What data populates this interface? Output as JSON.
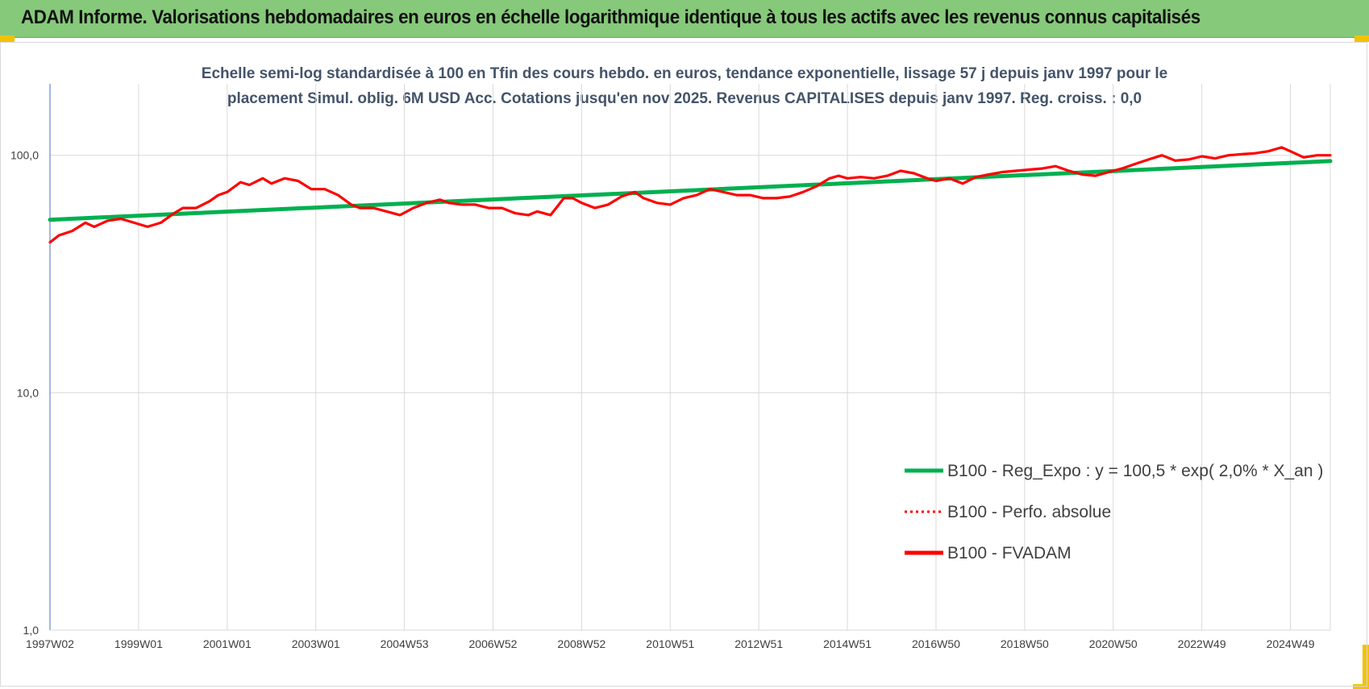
{
  "header": {
    "title": "ADAM Informe. Valorisations hebdomadaires en euros en échelle logarithmique identique à tous les actifs avec les revenus connus capitalisés"
  },
  "chart_data": {
    "type": "line",
    "subtitle_lines": [
      "Echelle semi-log standardisée à 100 en Tfin des cours hebdo. en euros, tendance exponentielle, lissage 57 j depuis janv 1997 pour le",
      "placement Simul. oblig. 6M USD Acc. Cotations jusqu'en nov 2025. Revenus CAPITALISES depuis janv 1997. Reg. croiss. : 0,0"
    ],
    "y_scale": "log",
    "ylim": [
      1,
      200
    ],
    "y_ticks": [
      {
        "value": 1,
        "label": "1,0"
      },
      {
        "value": 10,
        "label": "10,0"
      },
      {
        "value": 100,
        "label": "100,0"
      }
    ],
    "xlim": [
      1997.0,
      2025.9
    ],
    "x_ticks": [
      {
        "x": 1997.0,
        "label": "1997W02"
      },
      {
        "x": 1999.0,
        "label": "1999W01"
      },
      {
        "x": 2001.0,
        "label": "2001W01"
      },
      {
        "x": 2003.0,
        "label": "2003W01"
      },
      {
        "x": 2005.0,
        "label": "2004W53"
      },
      {
        "x": 2007.0,
        "label": "2006W52"
      },
      {
        "x": 2009.0,
        "label": "2008W52"
      },
      {
        "x": 2011.0,
        "label": "2010W51"
      },
      {
        "x": 2013.0,
        "label": "2012W51"
      },
      {
        "x": 2015.0,
        "label": "2014W51"
      },
      {
        "x": 2017.0,
        "label": "2016W50"
      },
      {
        "x": 2019.0,
        "label": "2018W50"
      },
      {
        "x": 2021.0,
        "label": "2020W50"
      },
      {
        "x": 2023.0,
        "label": "2022W49"
      },
      {
        "x": 2025.0,
        "label": "2024W49"
      }
    ],
    "grid": {
      "vertical": true,
      "horizontal": true
    },
    "legend_position": "bottom-right",
    "series": [
      {
        "name": "B100 - Reg_Expo : y = 100,5 * exp( 2,0% *  X_an )",
        "color": "#00b050",
        "style": "solid",
        "x": [
          1997.0,
          2025.9
        ],
        "values": [
          53.5,
          94.5
        ]
      },
      {
        "name": "B100 - Perfo. absolue",
        "color": "#ff0000",
        "style": "dotted",
        "x": [],
        "values": []
      },
      {
        "name": "B100 - FVADAM",
        "color": "#ff0000",
        "style": "solid",
        "x": [
          1997.0,
          1997.2,
          1997.5,
          1997.8,
          1998.0,
          1998.3,
          1998.6,
          1998.9,
          1999.2,
          1999.5,
          1999.8,
          2000.0,
          2000.3,
          2000.6,
          2000.8,
          2001.0,
          2001.3,
          2001.5,
          2001.8,
          2002.0,
          2002.3,
          2002.6,
          2002.9,
          2003.2,
          2003.5,
          2003.8,
          2004.0,
          2004.3,
          2004.6,
          2004.9,
          2005.2,
          2005.5,
          2005.8,
          2006.0,
          2006.3,
          2006.6,
          2006.9,
          2007.2,
          2007.5,
          2007.8,
          2008.0,
          2008.3,
          2008.6,
          2008.8,
          2009.0,
          2009.3,
          2009.6,
          2009.9,
          2010.2,
          2010.4,
          2010.7,
          2011.0,
          2011.3,
          2011.6,
          2011.9,
          2012.2,
          2012.5,
          2012.8,
          2013.1,
          2013.4,
          2013.7,
          2014.0,
          2014.3,
          2014.6,
          2014.8,
          2015.0,
          2015.3,
          2015.6,
          2015.9,
          2016.2,
          2016.5,
          2016.8,
          2017.0,
          2017.3,
          2017.6,
          2017.9,
          2018.2,
          2018.5,
          2018.8,
          2019.1,
          2019.4,
          2019.7,
          2020.0,
          2020.3,
          2020.6,
          2020.9,
          2021.2,
          2021.5,
          2021.8,
          2022.1,
          2022.4,
          2022.7,
          2023.0,
          2023.3,
          2023.6,
          2023.9,
          2024.2,
          2024.5,
          2024.8,
          2025.0,
          2025.3,
          2025.6,
          2025.9
        ],
        "values": [
          43,
          46,
          48,
          52,
          50,
          53,
          54,
          52,
          50,
          52,
          57,
          60,
          60,
          64,
          68,
          70,
          77,
          75,
          80,
          76,
          80,
          78,
          72,
          72,
          68,
          62,
          60,
          60,
          58,
          56,
          60,
          63,
          65,
          63,
          62,
          62,
          60,
          60,
          57,
          56,
          58,
          56,
          66,
          66,
          63,
          60,
          62,
          67,
          70,
          66,
          63,
          62,
          66,
          68,
          72,
          70,
          68,
          68,
          66,
          66,
          67,
          70,
          74,
          80,
          82,
          80,
          81,
          80,
          82,
          86,
          84,
          80,
          78,
          80,
          76,
          81,
          83,
          85,
          86,
          87,
          88,
          90,
          86,
          83,
          82,
          85,
          88,
          92,
          96,
          100,
          95,
          96,
          99,
          97,
          100,
          101,
          102,
          104,
          108,
          104,
          98,
          100,
          100
        ]
      }
    ]
  }
}
